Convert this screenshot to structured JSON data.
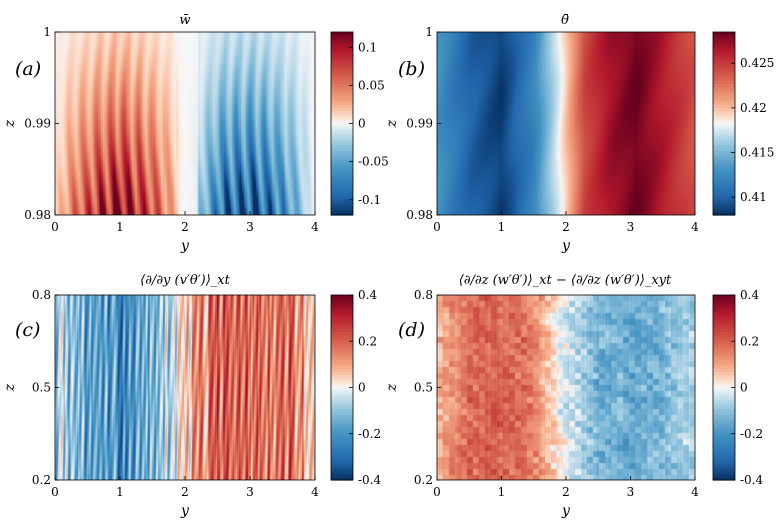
{
  "chart_data": [
    {
      "type": "heatmap",
      "panel_label": "(a)",
      "title": "w̄",
      "xlabel": "y",
      "ylabel": "z",
      "xlim": [
        0,
        4
      ],
      "ylim": [
        0.98,
        1
      ],
      "xticks": [
        "0",
        "1",
        "2",
        "3",
        "4"
      ],
      "yticks": [
        "0.98",
        "0.99",
        "1"
      ],
      "colorbar": {
        "range": [
          -0.12,
          0.12
        ],
        "ticks": [
          "0.1",
          "0.05",
          "0",
          "-0.05",
          "-0.1"
        ],
        "tick_values": [
          0.1,
          0.05,
          0,
          -0.05,
          -0.1
        ]
      },
      "y_profile": [
        {
          "y": 0.0,
          "value": 0.01
        },
        {
          "y": 0.3,
          "value": 0.05
        },
        {
          "y": 0.7,
          "value": 0.09
        },
        {
          "y": 1.0,
          "value": 0.11
        },
        {
          "y": 1.4,
          "value": 0.08
        },
        {
          "y": 1.8,
          "value": 0.03
        },
        {
          "y": 2.0,
          "value": 0.0
        },
        {
          "y": 2.3,
          "value": -0.04
        },
        {
          "y": 2.6,
          "value": -0.09
        },
        {
          "y": 3.0,
          "value": -0.11
        },
        {
          "y": 3.4,
          "value": -0.08
        },
        {
          "y": 3.8,
          "value": -0.03
        },
        {
          "y": 4.0,
          "value": 0.0
        }
      ],
      "pattern": "vertical streaks, strongest near z = 0.98, fading toward z = 1"
    },
    {
      "type": "heatmap",
      "panel_label": "(b)",
      "title": "θ̄",
      "xlabel": "y",
      "ylabel": "z",
      "xlim": [
        0,
        4
      ],
      "ylim": [
        0.98,
        1
      ],
      "xticks": [
        "0",
        "1",
        "2",
        "3",
        "4"
      ],
      "yticks": [
        "0.98",
        "0.99",
        "1"
      ],
      "colorbar": {
        "range": [
          0.408,
          0.4285
        ],
        "ticks": [
          "0.425",
          "0.42",
          "0.415",
          "0.41"
        ],
        "tick_values": [
          0.425,
          0.42,
          0.415,
          0.41
        ]
      },
      "y_profile": [
        {
          "y": 0.0,
          "value": 0.413
        },
        {
          "y": 0.5,
          "value": 0.41
        },
        {
          "y": 1.0,
          "value": 0.4085
        },
        {
          "y": 1.5,
          "value": 0.412
        },
        {
          "y": 1.9,
          "value": 0.418
        },
        {
          "y": 2.3,
          "value": 0.4245
        },
        {
          "y": 2.7,
          "value": 0.427
        },
        {
          "y": 3.1,
          "value": 0.4283
        },
        {
          "y": 3.5,
          "value": 0.4265
        },
        {
          "y": 4.0,
          "value": 0.424
        }
      ],
      "pattern": "smooth bands, nearly uniform in z"
    },
    {
      "type": "heatmap",
      "panel_label": "(c)",
      "title": "⟨∂/∂y (v′θ′)⟩_xt",
      "xlabel": "y",
      "ylabel": "z",
      "xlim": [
        0,
        4
      ],
      "ylim": [
        0.2,
        0.8
      ],
      "xticks": [
        "0",
        "1",
        "2",
        "3",
        "4"
      ],
      "yticks": [
        "0.2",
        "0.5",
        "0.8"
      ],
      "colorbar": {
        "range": [
          -0.4,
          0.4
        ],
        "ticks": [
          "0.4",
          "0.2",
          "0",
          "-0.2",
          "-0.4"
        ],
        "tick_values": [
          0.4,
          0.2,
          0,
          -0.2,
          -0.4
        ]
      },
      "y_profile": [
        {
          "y": 0.0,
          "value": -0.08
        },
        {
          "y": 0.5,
          "value": -0.18
        },
        {
          "y": 1.0,
          "value": -0.2
        },
        {
          "y": 1.5,
          "value": -0.15
        },
        {
          "y": 2.0,
          "value": 0.05
        },
        {
          "y": 2.5,
          "value": 0.18
        },
        {
          "y": 3.0,
          "value": 0.2
        },
        {
          "y": 3.5,
          "value": 0.18
        },
        {
          "y": 4.0,
          "value": 0.1
        }
      ],
      "pattern": "thin vertical streaks with noise"
    },
    {
      "type": "heatmap",
      "panel_label": "(d)",
      "title": "⟨∂/∂z (w′θ′)⟩_xt − ⟨∂/∂z (w′θ′)⟩_xyt",
      "xlabel": "y",
      "ylabel": "z",
      "xlim": [
        0,
        4
      ],
      "ylim": [
        0.2,
        0.8
      ],
      "xticks": [
        "0",
        "1",
        "2",
        "3",
        "4"
      ],
      "yticks": [
        "0.2",
        "0.5",
        "0.8"
      ],
      "colorbar": {
        "range": [
          -0.4,
          0.4
        ],
        "ticks": [
          "0.4",
          "0.2",
          "0",
          "-0.2",
          "-0.4"
        ],
        "tick_values": [
          0.4,
          0.2,
          0,
          -0.2,
          -0.4
        ]
      },
      "y_profile": [
        {
          "y": 0.0,
          "value": 0.08
        },
        {
          "y": 0.5,
          "value": 0.18
        },
        {
          "y": 1.0,
          "value": 0.2
        },
        {
          "y": 1.5,
          "value": 0.15
        },
        {
          "y": 2.0,
          "value": -0.03
        },
        {
          "y": 2.5,
          "value": -0.13
        },
        {
          "y": 3.0,
          "value": -0.15
        },
        {
          "y": 3.5,
          "value": -0.12
        },
        {
          "y": 4.0,
          "value": -0.06
        }
      ],
      "pattern": "patchy mottled texture"
    }
  ]
}
